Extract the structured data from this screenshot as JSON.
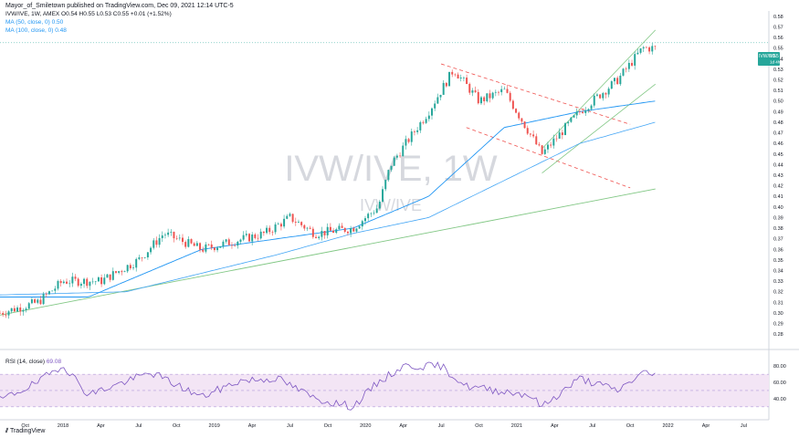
{
  "header": {
    "published": "Mayor_of_Smiletown published on TradingView.com, Dec 09, 2021 12:14 UTC-5"
  },
  "legend": {
    "symbol_line": "IVW/IVE, 1W, AMEX  O0.54  H0.55  L0.53  C0.55  +0.01 (+1.52%)",
    "ma50_line": "MA (50, close, 0)  0.50",
    "ma100_line": "MA (100, close, 0)  0.48"
  },
  "watermark": {
    "main": "IVW/IVE, 1W",
    "sub": "IVW/IVE"
  },
  "price_badge": {
    "symbol": "IVW/IVE",
    "price": "0.55",
    "countdown": "1d 4h"
  },
  "rsi": {
    "label_prefix": "RSI (14, close)",
    "value": "69.08"
  },
  "footer": {
    "brand": "TradingView"
  },
  "colors": {
    "up": "#26a69a",
    "down": "#ef5350",
    "ma50": "#2196f3",
    "ma100": "#42a5f5",
    "trendline": "#81c784",
    "channel": "#ef5350",
    "rsi": "#7e57c2",
    "rsi_band": "#f3e5f5"
  },
  "chart_data": {
    "type": "candlestick",
    "x_axis_labels": [
      "Oct",
      "2018",
      "Apr",
      "Jul",
      "Oct",
      "2019",
      "Apr",
      "Jul",
      "Oct",
      "2020",
      "Apr",
      "Jul",
      "Oct",
      "2021",
      "Apr",
      "Jul",
      "Oct",
      "2022",
      "Apr",
      "Jul"
    ],
    "price_axis_labels": [
      "0.58",
      "0.57",
      "0.56",
      "0.55",
      "0.54",
      "0.53",
      "0.52",
      "0.51",
      "0.50",
      "0.49",
      "0.48",
      "0.47",
      "0.46",
      "0.45",
      "0.44",
      "0.43",
      "0.42",
      "0.41",
      "0.40",
      "0.39",
      "0.38",
      "0.37",
      "0.36",
      "0.35",
      "0.34",
      "0.33",
      "0.32",
      "0.31",
      "0.30",
      "0.29",
      "0.28"
    ],
    "price_range": [
      0.275,
      0.585
    ],
    "rsi_axis_labels": [
      "80.00",
      "60.00",
      "40.00"
    ],
    "rsi_range": [
      23,
      87
    ],
    "rsi_band": [
      30,
      70
    ],
    "period": "weekly",
    "price_keypoints": [
      {
        "date": "2017-08",
        "close": 0.3
      },
      {
        "date": "2017-11",
        "close": 0.31
      },
      {
        "date": "2018-01",
        "close": 0.33
      },
      {
        "date": "2018-04",
        "close": 0.33
      },
      {
        "date": "2018-07",
        "close": 0.35
      },
      {
        "date": "2018-09",
        "close": 0.375
      },
      {
        "date": "2018-12",
        "close": 0.36
      },
      {
        "date": "2019-05",
        "close": 0.375
      },
      {
        "date": "2019-07",
        "close": 0.39
      },
      {
        "date": "2019-09",
        "close": 0.375
      },
      {
        "date": "2019-12",
        "close": 0.38
      },
      {
        "date": "2020-02",
        "close": 0.4
      },
      {
        "date": "2020-03",
        "close": 0.44
      },
      {
        "date": "2020-06",
        "close": 0.49
      },
      {
        "date": "2020-08",
        "close": 0.53
      },
      {
        "date": "2020-10",
        "close": 0.5
      },
      {
        "date": "2020-12",
        "close": 0.51
      },
      {
        "date": "2021-03",
        "close": 0.45
      },
      {
        "date": "2021-06",
        "close": 0.49
      },
      {
        "date": "2021-09",
        "close": 0.52
      },
      {
        "date": "2021-11",
        "close": 0.55
      },
      {
        "date": "2021-12",
        "close": 0.55
      }
    ],
    "ma50_keypoints": [
      {
        "date": "2017-08",
        "value": 0.315
      },
      {
        "date": "2018-03",
        "value": 0.315
      },
      {
        "date": "2018-12",
        "value": 0.36
      },
      {
        "date": "2019-12",
        "value": 0.38
      },
      {
        "date": "2020-06",
        "value": 0.41
      },
      {
        "date": "2020-12",
        "value": 0.475
      },
      {
        "date": "2021-06",
        "value": 0.49
      },
      {
        "date": "2021-12",
        "value": 0.5
      }
    ],
    "ma100_keypoints": [
      {
        "date": "2017-08",
        "value": 0.317
      },
      {
        "date": "2018-06",
        "value": 0.32
      },
      {
        "date": "2019-06",
        "value": 0.355
      },
      {
        "date": "2019-12",
        "value": 0.375
      },
      {
        "date": "2020-06",
        "value": 0.39
      },
      {
        "date": "2020-12",
        "value": 0.425
      },
      {
        "date": "2021-06",
        "value": 0.46
      },
      {
        "date": "2021-12",
        "value": 0.48
      }
    ],
    "rsi_keypoints": [
      {
        "date": "2017-08",
        "value": 38
      },
      {
        "date": "2017-11",
        "value": 60
      },
      {
        "date": "2018-01",
        "value": 82
      },
      {
        "date": "2018-03",
        "value": 45
      },
      {
        "date": "2018-08",
        "value": 72
      },
      {
        "date": "2018-12",
        "value": 42
      },
      {
        "date": "2019-03",
        "value": 62
      },
      {
        "date": "2019-06",
        "value": 65
      },
      {
        "date": "2019-09",
        "value": 40
      },
      {
        "date": "2019-12",
        "value": 30
      },
      {
        "date": "2020-02",
        "value": 60
      },
      {
        "date": "2020-04",
        "value": 80
      },
      {
        "date": "2020-07",
        "value": 80
      },
      {
        "date": "2020-09",
        "value": 55
      },
      {
        "date": "2021-02",
        "value": 45
      },
      {
        "date": "2021-03",
        "value": 30
      },
      {
        "date": "2021-06",
        "value": 65
      },
      {
        "date": "2021-09",
        "value": 50
      },
      {
        "date": "2021-11",
        "value": 72
      },
      {
        "date": "2021-12",
        "value": 69
      }
    ],
    "drawings": {
      "long_trendline": [
        {
          "date": "2017-08",
          "price": 0.298
        },
        {
          "date": "2021-12",
          "price": 0.417
        }
      ],
      "channel_upper": [
        {
          "date": "2020-07",
          "price": 0.535
        },
        {
          "date": "2021-10",
          "price": 0.478
        }
      ],
      "channel_lower": [
        {
          "date": "2020-09",
          "price": 0.475
        },
        {
          "date": "2021-10",
          "price": 0.418
        }
      ],
      "rising_upper": [
        {
          "date": "2021-03",
          "price": 0.455
        },
        {
          "date": "2021-12",
          "price": 0.567
        }
      ],
      "rising_lower": [
        {
          "date": "2021-03",
          "price": 0.432
        },
        {
          "date": "2021-12",
          "price": 0.516
        }
      ],
      "last_price_line": 0.555
    }
  }
}
